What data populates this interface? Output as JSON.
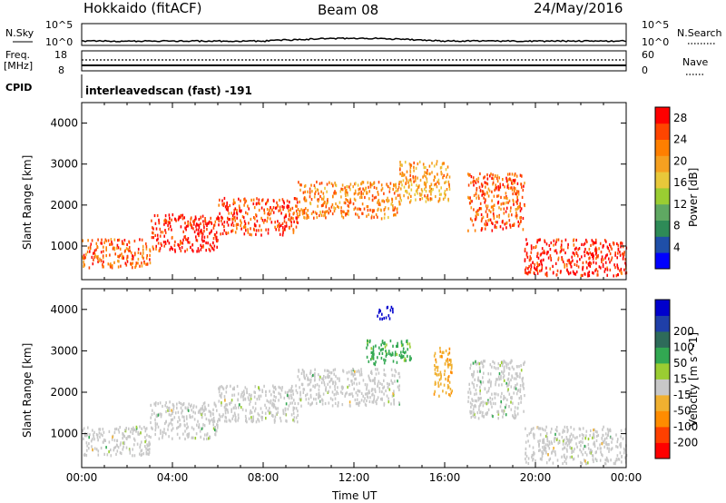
{
  "header": {
    "station": "Hokkaido (fitACF)",
    "beam": "Beam 08",
    "date": "24/May/2016"
  },
  "top_panels": {
    "nsky_label": "N.Sky",
    "nsky_ticks": [
      "10^5",
      "10^0"
    ],
    "nsearch_label": "N.Search",
    "nsearch_ticks": [
      "10^5",
      "10^0"
    ],
    "freq_label_1": "Freq.",
    "freq_label_2": "[MHz]",
    "freq_ticks": [
      "18",
      "8"
    ],
    "nave_label": "Nave",
    "nave_ticks": [
      "60",
      "0"
    ],
    "cpid_label": "CPID",
    "cpid_text": "interleavedscan (fast) -191"
  },
  "colors": {
    "power_scale": [
      "#0000ff",
      "#1f4fa8",
      "#2e8b57",
      "#5fa862",
      "#9acd32",
      "#e8c83a",
      "#f5a020",
      "#ff7f00",
      "#ff4500",
      "#ff0000"
    ],
    "velocity_scale": [
      "#ff0000",
      "#ff4000",
      "#ff8c00",
      "#f0b030",
      "#c8c8c8",
      "#9acd32",
      "#32a852",
      "#2e6b5a",
      "#1f3fa8",
      "#0000cd"
    ],
    "ground_scatter": "#c8c8c8"
  },
  "chart_data": [
    {
      "type": "heatmap",
      "name": "power-panel",
      "title": "",
      "xlabel": "",
      "ylabel": "Slant Range [km]",
      "xlim": [
        "00:00",
        "00:00"
      ],
      "ylim": [
        180,
        4500
      ],
      "yticks": [
        1000,
        2000,
        3000,
        4000
      ],
      "colorbar": {
        "label": "Power [dB]",
        "ticks": [
          4,
          8,
          12,
          16,
          20,
          24,
          28
        ],
        "range": [
          0,
          30
        ]
      },
      "bands": [
        {
          "start_h": 0.0,
          "end_h": 3.0,
          "range_min": 500,
          "range_max": 1200,
          "power_db": 24
        },
        {
          "start_h": 3.0,
          "end_h": 6.0,
          "range_min": 900,
          "range_max": 1800,
          "power_db": 28
        },
        {
          "start_h": 6.0,
          "end_h": 9.5,
          "range_min": 1300,
          "range_max": 2200,
          "power_db": 26
        },
        {
          "start_h": 9.5,
          "end_h": 14.0,
          "range_min": 1700,
          "range_max": 2600,
          "power_db": 22
        },
        {
          "start_h": 14.0,
          "end_h": 16.2,
          "range_min": 2100,
          "range_max": 3100,
          "power_db": 20
        },
        {
          "start_h": 17.0,
          "end_h": 19.5,
          "range_min": 1400,
          "range_max": 2800,
          "power_db": 24
        },
        {
          "start_h": 19.5,
          "end_h": 24.0,
          "range_min": 300,
          "range_max": 1200,
          "power_db": 28
        }
      ]
    },
    {
      "type": "heatmap",
      "name": "velocity-panel",
      "title": "",
      "xlabel": "Time UT",
      "ylabel": "Slant Range [km]",
      "xlim": [
        "00:00",
        "00:00"
      ],
      "ylim": [
        180,
        4500
      ],
      "yticks": [
        1000,
        2000,
        3000,
        4000
      ],
      "xticks": [
        "00:00",
        "04:00",
        "08:00",
        "12:00",
        "16:00",
        "20:00",
        "00:00"
      ],
      "colorbar": {
        "label": "Velocity [m s^-1]",
        "ticks": [
          -200,
          -100,
          -50,
          -15,
          15,
          50,
          100,
          200
        ]
      },
      "bands": [
        {
          "start_h": 0.0,
          "end_h": 3.0,
          "range_min": 500,
          "range_max": 1200,
          "velocity": 0
        },
        {
          "start_h": 3.0,
          "end_h": 6.0,
          "range_min": 900,
          "range_max": 1800,
          "velocity": 0
        },
        {
          "start_h": 6.0,
          "end_h": 9.5,
          "range_min": 1300,
          "range_max": 2200,
          "velocity": 0
        },
        {
          "start_h": 9.5,
          "end_h": 14.0,
          "range_min": 1700,
          "range_max": 2600,
          "velocity": 0
        },
        {
          "start_h": 12.5,
          "end_h": 14.5,
          "range_min": 2700,
          "range_max": 3300,
          "velocity": 30
        },
        {
          "start_h": 13.0,
          "end_h": 13.7,
          "range_min": 3800,
          "range_max": 4100,
          "velocity": 220
        },
        {
          "start_h": 15.5,
          "end_h": 16.3,
          "range_min": 1900,
          "range_max": 3100,
          "velocity": -40
        },
        {
          "start_h": 17.0,
          "end_h": 19.5,
          "range_min": 1400,
          "range_max": 2800,
          "velocity": 10
        },
        {
          "start_h": 19.5,
          "end_h": 24.0,
          "range_min": 300,
          "range_max": 1200,
          "velocity": 0
        }
      ]
    }
  ]
}
